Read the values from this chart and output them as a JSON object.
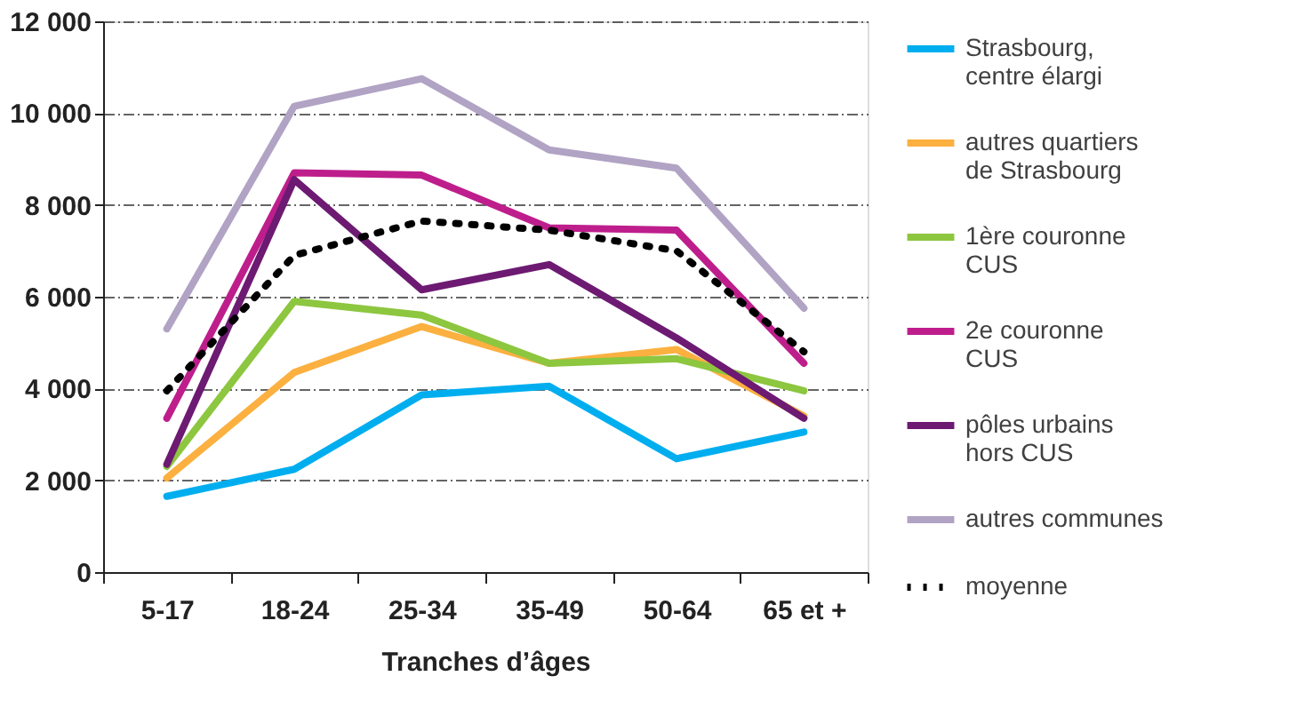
{
  "chart_data": {
    "type": "line",
    "xlabel": "Tranches d’âges",
    "categories": [
      "5-17",
      "18-24",
      "25-34",
      "35-49",
      "50-64",
      "65 et +"
    ],
    "series": [
      {
        "name": "Strasbourg,\ncentre élargi",
        "color": "#00aeef",
        "values": [
          1650,
          2240,
          3860,
          4050,
          2470,
          3050
        ]
      },
      {
        "name": "autres quartiers\nde Strasbourg",
        "color": "#fbb040",
        "values": [
          2050,
          4350,
          5350,
          4550,
          4850,
          3400
        ]
      },
      {
        "name": "1ère couronne\nCUS",
        "color": "#8dc63f",
        "values": [
          2300,
          5900,
          5600,
          4550,
          4650,
          3950
        ]
      },
      {
        "name": "2e couronne\nCUS",
        "color": "#be1e8c",
        "values": [
          3350,
          8700,
          8650,
          7500,
          7450,
          4550
        ]
      },
      {
        "name": "pôles urbains\nhors CUS",
        "color": "#6d1a72",
        "values": [
          2350,
          8550,
          6150,
          6700,
          5100,
          3350
        ]
      },
      {
        "name": "autres communes",
        "color": "#b1a3c4",
        "values": [
          5300,
          10150,
          10750,
          9200,
          8800,
          5750
        ]
      },
      {
        "name": "moyenne",
        "color": "#000000",
        "line_style": "dotted",
        "values": [
          3950,
          6900,
          7650,
          7450,
          7000,
          4800
        ]
      }
    ],
    "ylim": [
      0,
      12000
    ],
    "yticks": [
      {
        "value": 0,
        "label": "0"
      },
      {
        "value": 2000,
        "label": "2 000"
      },
      {
        "value": 4000,
        "label": "4 000"
      },
      {
        "value": 6000,
        "label": "6 000"
      },
      {
        "value": 8000,
        "label": "8 000"
      },
      {
        "value": 10000,
        "label": "10 000"
      },
      {
        "value": 12000,
        "label": "12 000"
      }
    ],
    "grid": "y",
    "legend": "right",
    "line_style": "solid"
  }
}
